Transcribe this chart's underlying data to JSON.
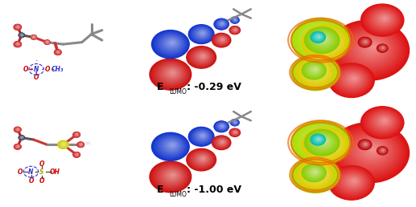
{
  "figsize": [
    5.17,
    2.58
  ],
  "dpi": 100,
  "background_color": "#ffffff",
  "panel_labels": [
    {
      "energy": "E",
      "sub": "LUMO",
      "val": ": -0.29 eV"
    },
    {
      "energy": "E",
      "sub": "LUMO",
      "val": ": -1.00 eV"
    }
  ],
  "esp_colors": {
    "red": "#dd1111",
    "darkred": "#bb0000",
    "orange": "#ee6600",
    "yellow": "#ddcc00",
    "green": "#88cc00",
    "limegreen": "#aadd00",
    "tealgreen": "#22bb55",
    "cyan": "#00bbaa",
    "blue": "#1133cc",
    "darkblue": "#0022aa"
  },
  "orbital_colors": {
    "red": "#cc1111",
    "blue": "#1133cc"
  }
}
